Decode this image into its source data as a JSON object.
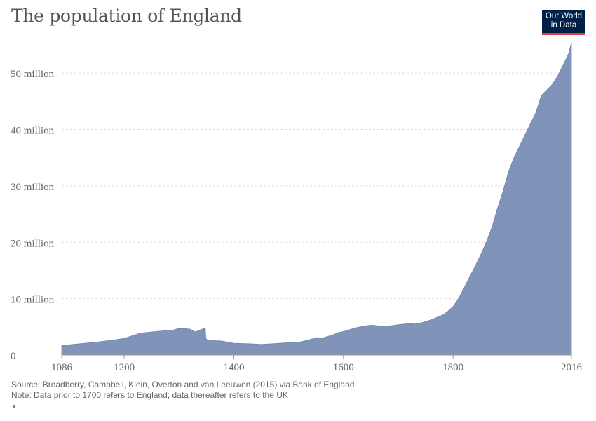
{
  "chart_data": {
    "type": "area",
    "title": "The population of England",
    "xlabel": "",
    "ylabel": "",
    "xlim": [
      1086,
      2016
    ],
    "ylim": [
      0,
      55000000
    ],
    "x_ticks": [
      {
        "value": 1086,
        "label": "1086"
      },
      {
        "value": 1200,
        "label": "1200"
      },
      {
        "value": 1400,
        "label": "1400"
      },
      {
        "value": 1600,
        "label": "1600"
      },
      {
        "value": 1800,
        "label": "1800"
      },
      {
        "value": 2016,
        "label": "2016"
      }
    ],
    "y_ticks": [
      {
        "value": 0,
        "label": "0"
      },
      {
        "value": 10000000,
        "label": "10 million"
      },
      {
        "value": 20000000,
        "label": "20 million"
      },
      {
        "value": 30000000,
        "label": "30 million"
      },
      {
        "value": 40000000,
        "label": "40 million"
      },
      {
        "value": 50000000,
        "label": "50 million"
      }
    ],
    "grid": "horizontal dashed",
    "color": "#7f94b8",
    "series": [
      {
        "name": "",
        "x": [
          1086,
          1100,
          1150,
          1180,
          1200,
          1230,
          1260,
          1290,
          1300,
          1310,
          1315,
          1320,
          1330,
          1340,
          1348,
          1349,
          1352,
          1377,
          1400,
          1430,
          1450,
          1470,
          1500,
          1522,
          1541,
          1551,
          1561,
          1571,
          1581,
          1591,
          1601,
          1611,
          1621,
          1631,
          1641,
          1651,
          1661,
          1671,
          1681,
          1691,
          1701,
          1711,
          1721,
          1731,
          1741,
          1751,
          1761,
          1771,
          1781,
          1791,
          1801,
          1811,
          1821,
          1831,
          1841,
          1851,
          1861,
          1871,
          1881,
          1891,
          1901,
          1911,
          1921,
          1931,
          1941,
          1951,
          1961,
          1971,
          1981,
          1991,
          2001,
          2011,
          2016
        ],
        "values": [
          1710000,
          1830000,
          2300000,
          2650000,
          2950000,
          3900000,
          4200000,
          4450000,
          4750000,
          4700000,
          4650000,
          4600000,
          4100000,
          4500000,
          4800000,
          3000000,
          2600000,
          2500000,
          2100000,
          2000000,
          1900000,
          2000000,
          2200000,
          2350000,
          2800000,
          3100000,
          3000000,
          3300000,
          3600000,
          4000000,
          4200000,
          4500000,
          4800000,
          5000000,
          5200000,
          5300000,
          5200000,
          5100000,
          5150000,
          5250000,
          5400000,
          5500000,
          5600000,
          5500000,
          5700000,
          5950000,
          6300000,
          6700000,
          7100000,
          7800000,
          8700000,
          10200000,
          12100000,
          14000000,
          15900000,
          17900000,
          20100000,
          22700000,
          26000000,
          29000000,
          32500000,
          35000000,
          37000000,
          39000000,
          41000000,
          43000000,
          46000000,
          47000000,
          48000000,
          49500000,
          51500000,
          53500000,
          55500000
        ]
      }
    ]
  },
  "logo": {
    "line1": "Our World",
    "line2": "in Data",
    "bg": "#002147",
    "accent": "#e63946"
  },
  "footer": {
    "source": "Source: Broadberry, Campbell, Klein, Overton and van Leeuwen (2015) via Bank of England",
    "note": "Note: Data prior to 1700 refers to England; data thereafter refers to the UK"
  }
}
